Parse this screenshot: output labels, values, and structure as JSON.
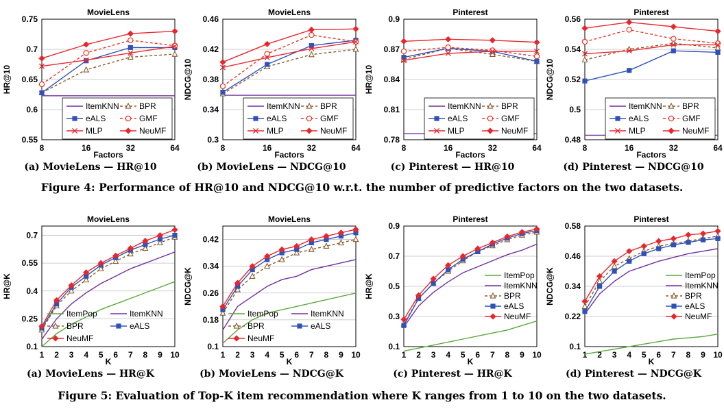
{
  "colors": {
    "ItemKNN": "#7030a0",
    "ItemPop": "#5ca83b",
    "BPR": "#8a5a2b",
    "eALS": "#2f52b8",
    "GMF": "#ea3323",
    "MLP": "#e8272d",
    "NeuMF": "#e8272d",
    "axis": "#000000",
    "grid": "#bfbfbf"
  },
  "fig4": {
    "caption": "Figure 4: Performance of HR@10 and NDCG@10 w.r.t. the number of predictive factors on the two datasets.",
    "subcaptions": [
      "(a) MovieLens — HR@10",
      "(b) MovieLens — NDCG@10",
      "(c) Pinterest — HR@10",
      "(d) Pinterest — NDCG@10"
    ]
  },
  "fig5": {
    "caption": "Figure 5: Evaluation of Top-K item recommendation where K ranges from 1 to 10 on the two datasets.",
    "subcaptions": [
      "(a) MovieLens — HR@K",
      "(b) MovieLens — NDCG@K",
      "(c) Pinterest — HR@K",
      "(d) Pinterest — NDCG@K"
    ]
  },
  "chart_data": [
    {
      "type": "line",
      "title": "MovieLens",
      "xlabel": "Factors",
      "ylabel": "HR@10",
      "categories": [
        "8",
        "16",
        "32",
        "64"
      ],
      "ylim": [
        0.55,
        0.75
      ],
      "yticks": [
        "0.55",
        "0.6",
        "0.65",
        "0.7",
        "0.75"
      ],
      "legend_cols": 2,
      "series": [
        {
          "name": "ItemKNN",
          "values": [
            0.623,
            0.623,
            0.623,
            0.623
          ]
        },
        {
          "name": "BPR",
          "values": [
            0.628,
            0.666,
            0.687,
            0.692
          ]
        },
        {
          "name": "eALS",
          "values": [
            0.628,
            0.681,
            0.703,
            0.703
          ]
        },
        {
          "name": "GMF",
          "values": [
            0.642,
            0.694,
            0.715,
            0.706
          ]
        },
        {
          "name": "MLP",
          "values": [
            0.672,
            0.682,
            0.694,
            0.705
          ]
        },
        {
          "name": "NeuMF",
          "values": [
            0.685,
            0.708,
            0.726,
            0.73
          ]
        }
      ]
    },
    {
      "type": "line",
      "title": "MovieLens",
      "xlabel": "Factors",
      "ylabel": "NDCG@10",
      "categories": [
        "8",
        "16",
        "32",
        "64"
      ],
      "ylim": [
        0.3,
        0.46
      ],
      "yticks": [
        "0.3",
        "0.34",
        "0.38",
        "0.42",
        "0.46"
      ],
      "legend_cols": 2,
      "series": [
        {
          "name": "ItemKNN",
          "values": [
            0.359,
            0.359,
            0.359,
            0.359
          ]
        },
        {
          "name": "BPR",
          "values": [
            0.361,
            0.397,
            0.413,
            0.42
          ]
        },
        {
          "name": "eALS",
          "values": [
            0.363,
            0.4,
            0.425,
            0.432
          ]
        },
        {
          "name": "GMF",
          "values": [
            0.371,
            0.414,
            0.439,
            0.43
          ]
        },
        {
          "name": "MLP",
          "values": [
            0.396,
            0.409,
            0.421,
            0.43
          ]
        },
        {
          "name": "NeuMF",
          "values": [
            0.403,
            0.427,
            0.446,
            0.447
          ]
        }
      ]
    },
    {
      "type": "line",
      "title": "Pinterest",
      "xlabel": "Factors",
      "ylabel": "HR@10",
      "categories": [
        "8",
        "16",
        "32",
        "64"
      ],
      "ylim": [
        0.78,
        0.9
      ],
      "yticks": [
        "0.78",
        "0.81",
        "0.84",
        "0.87",
        "0.9"
      ],
      "legend_cols": 2,
      "series": [
        {
          "name": "ItemKNN",
          "values": [
            0.786,
            0.786,
            0.786,
            0.786
          ]
        },
        {
          "name": "BPR",
          "values": [
            0.86,
            0.871,
            0.865,
            0.858
          ]
        },
        {
          "name": "eALS",
          "values": [
            0.862,
            0.871,
            0.868,
            0.858
          ]
        },
        {
          "name": "GMF",
          "values": [
            0.868,
            0.872,
            0.869,
            0.863
          ]
        },
        {
          "name": "MLP",
          "values": [
            0.859,
            0.866,
            0.868,
            0.868
          ]
        },
        {
          "name": "NeuMF",
          "values": [
            0.878,
            0.88,
            0.879,
            0.877
          ]
        }
      ]
    },
    {
      "type": "line",
      "title": "Pinterest",
      "xlabel": "Factors",
      "ylabel": "NDCG@10",
      "categories": [
        "8",
        "16",
        "32",
        "64"
      ],
      "ylim": [
        0.48,
        0.56
      ],
      "yticks": [
        "0.48",
        "0.5",
        "0.52",
        "0.54",
        "0.56"
      ],
      "legend_cols": 2,
      "series": [
        {
          "name": "ItemKNN",
          "values": [
            0.483,
            0.483,
            0.483,
            0.483
          ]
        },
        {
          "name": "BPR",
          "values": [
            0.533,
            0.54,
            0.544,
            0.541
          ]
        },
        {
          "name": "eALS",
          "values": [
            0.519,
            0.526,
            0.539,
            0.538
          ]
        },
        {
          "name": "GMF",
          "values": [
            0.545,
            0.553,
            0.547,
            0.544
          ]
        },
        {
          "name": "MLP",
          "values": [
            0.537,
            0.539,
            0.543,
            0.543
          ]
        },
        {
          "name": "NeuMF",
          "values": [
            0.554,
            0.558,
            0.555,
            0.552
          ]
        }
      ]
    },
    {
      "type": "line",
      "title": "MovieLens",
      "xlabel": "K",
      "ylabel": "HR@K",
      "categories": [
        "1",
        "2",
        "3",
        "4",
        "5",
        "6",
        "7",
        "8",
        "9",
        "10"
      ],
      "ylim": [
        0.1,
        0.75
      ],
      "yticks": [
        "0.1",
        "0.25",
        "0.4",
        "0.55",
        "0.7"
      ],
      "legend_cols": 2,
      "series": [
        {
          "name": "ItemPop",
          "values": [
            0.1,
            0.17,
            0.22,
            0.26,
            0.3,
            0.33,
            0.36,
            0.39,
            0.42,
            0.45
          ]
        },
        {
          "name": "ItemKNN",
          "values": [
            0.14,
            0.25,
            0.33,
            0.39,
            0.44,
            0.48,
            0.52,
            0.55,
            0.58,
            0.61
          ]
        },
        {
          "name": "BPR",
          "values": [
            0.19,
            0.32,
            0.4,
            0.46,
            0.52,
            0.56,
            0.6,
            0.63,
            0.66,
            0.69
          ]
        },
        {
          "name": "eALS",
          "values": [
            0.2,
            0.33,
            0.42,
            0.48,
            0.54,
            0.58,
            0.62,
            0.65,
            0.68,
            0.7
          ]
        },
        {
          "name": "NeuMF",
          "values": [
            0.21,
            0.35,
            0.43,
            0.5,
            0.55,
            0.59,
            0.63,
            0.67,
            0.7,
            0.73
          ]
        }
      ]
    },
    {
      "type": "line",
      "title": "MovieLens",
      "xlabel": "K",
      "ylabel": "NDCG@K",
      "categories": [
        "1",
        "2",
        "3",
        "4",
        "5",
        "6",
        "7",
        "8",
        "9",
        "10"
      ],
      "ylim": [
        0.1,
        0.46
      ],
      "yticks": [
        "0.1",
        "0.18",
        "0.26",
        "0.34",
        "0.42"
      ],
      "legend_cols": 2,
      "series": [
        {
          "name": "ItemPop",
          "values": [
            0.11,
            0.15,
            0.18,
            0.2,
            0.21,
            0.22,
            0.23,
            0.24,
            0.25,
            0.26
          ]
        },
        {
          "name": "ItemKNN",
          "values": [
            0.15,
            0.22,
            0.25,
            0.28,
            0.3,
            0.31,
            0.33,
            0.34,
            0.35,
            0.36
          ]
        },
        {
          "name": "BPR",
          "values": [
            0.2,
            0.27,
            0.31,
            0.34,
            0.36,
            0.38,
            0.39,
            0.4,
            0.41,
            0.42
          ]
        },
        {
          "name": "eALS",
          "values": [
            0.21,
            0.28,
            0.33,
            0.36,
            0.38,
            0.39,
            0.41,
            0.42,
            0.43,
            0.44
          ]
        },
        {
          "name": "NeuMF",
          "values": [
            0.22,
            0.29,
            0.34,
            0.37,
            0.39,
            0.4,
            0.42,
            0.43,
            0.44,
            0.45
          ]
        }
      ]
    },
    {
      "type": "line",
      "title": "Pinterest",
      "xlabel": "K",
      "ylabel": "HR@K",
      "categories": [
        "1",
        "2",
        "3",
        "4",
        "5",
        "6",
        "7",
        "8",
        "9",
        "10"
      ],
      "ylim": [
        0.1,
        0.9
      ],
      "yticks": [
        "0.1",
        "0.3",
        "0.5",
        "0.7",
        "0.9"
      ],
      "legend_cols": 1,
      "series": [
        {
          "name": "ItemPop",
          "values": [
            0.07,
            0.09,
            0.11,
            0.13,
            0.15,
            0.17,
            0.19,
            0.21,
            0.24,
            0.27
          ]
        },
        {
          "name": "ItemKNN",
          "values": [
            0.23,
            0.37,
            0.46,
            0.53,
            0.59,
            0.63,
            0.67,
            0.71,
            0.74,
            0.78
          ]
        },
        {
          "name": "BPR",
          "values": [
            0.25,
            0.42,
            0.52,
            0.6,
            0.67,
            0.73,
            0.77,
            0.81,
            0.84,
            0.86
          ]
        },
        {
          "name": "eALS",
          "values": [
            0.24,
            0.42,
            0.52,
            0.61,
            0.68,
            0.73,
            0.78,
            0.82,
            0.85,
            0.87
          ]
        },
        {
          "name": "NeuMF",
          "values": [
            0.28,
            0.44,
            0.55,
            0.64,
            0.7,
            0.75,
            0.79,
            0.83,
            0.86,
            0.88
          ]
        }
      ]
    },
    {
      "type": "line",
      "title": "Pinterest",
      "xlabel": "K",
      "ylabel": "NDCG@K",
      "categories": [
        "1",
        "2",
        "3",
        "4",
        "5",
        "6",
        "7",
        "8",
        "9",
        "10"
      ],
      "ylim": [
        0.1,
        0.58
      ],
      "yticks": [
        "0.1",
        "0.22",
        "0.34",
        "0.46",
        "0.58"
      ],
      "legend_cols": 1,
      "series": [
        {
          "name": "ItemPop",
          "values": [
            0.07,
            0.08,
            0.09,
            0.1,
            0.11,
            0.12,
            0.13,
            0.135,
            0.14,
            0.15
          ]
        },
        {
          "name": "ItemKNN",
          "values": [
            0.23,
            0.31,
            0.36,
            0.4,
            0.42,
            0.44,
            0.455,
            0.47,
            0.48,
            0.49
          ]
        },
        {
          "name": "BPR",
          "values": [
            0.26,
            0.36,
            0.42,
            0.45,
            0.48,
            0.5,
            0.51,
            0.52,
            0.53,
            0.54
          ]
        },
        {
          "name": "eALS",
          "values": [
            0.24,
            0.34,
            0.4,
            0.44,
            0.47,
            0.49,
            0.505,
            0.515,
            0.525,
            0.53
          ]
        },
        {
          "name": "NeuMF",
          "values": [
            0.28,
            0.38,
            0.44,
            0.48,
            0.5,
            0.52,
            0.53,
            0.545,
            0.55,
            0.56
          ]
        }
      ]
    }
  ]
}
